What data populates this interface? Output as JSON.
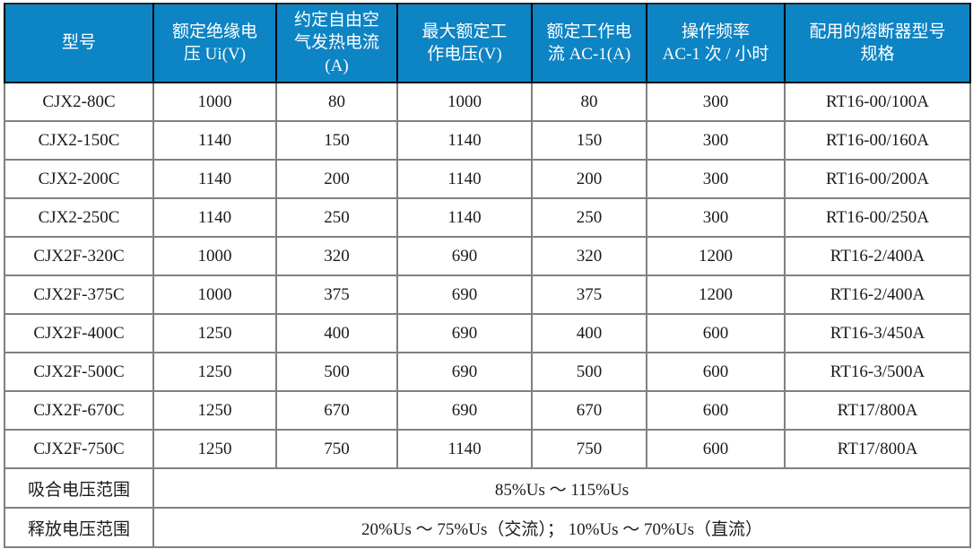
{
  "colors": {
    "header_bg": "#0d84c4",
    "header_text": "#ffffff",
    "grid": "#808080",
    "outer_border": "#222222",
    "body_text": "#1a1a1a"
  },
  "table": {
    "columns": [
      "型号",
      "额定绝缘电\n压 Ui(V)",
      "约定自由空\n气发热电流\n(A)",
      "最大额定工\n作电压(V)",
      "额定工作电\n流 AC-1(A)",
      "操作频率\nAC-1 次 / 小时",
      "配用的熔断器型号\n规格"
    ],
    "rows": [
      [
        "CJX2-80C",
        "1000",
        "80",
        "1000",
        "80",
        "300",
        "RT16-00/100A"
      ],
      [
        "CJX2-150C",
        "1140",
        "150",
        "1140",
        "150",
        "300",
        "RT16-00/160A"
      ],
      [
        "CJX2-200C",
        "1140",
        "200",
        "1140",
        "200",
        "300",
        "RT16-00/200A"
      ],
      [
        "CJX2-250C",
        "1140",
        "250",
        "1140",
        "250",
        "300",
        "RT16-00/250A"
      ],
      [
        "CJX2F-320C",
        "1000",
        "320",
        "690",
        "320",
        "1200",
        "RT16-2/400A"
      ],
      [
        "CJX2F-375C",
        "1000",
        "375",
        "690",
        "375",
        "1200",
        "RT16-2/400A"
      ],
      [
        "CJX2F-400C",
        "1250",
        "400",
        "690",
        "400",
        "600",
        "RT16-3/450A"
      ],
      [
        "CJX2F-500C",
        "1250",
        "500",
        "690",
        "500",
        "600",
        "RT16-3/500A"
      ],
      [
        "CJX2F-670C",
        "1250",
        "670",
        "690",
        "670",
        "600",
        "RT17/800A"
      ],
      [
        "CJX2F-750C",
        "1250",
        "750",
        "1140",
        "750",
        "600",
        "RT17/800A"
      ]
    ],
    "footer_rows": [
      {
        "label": "吸合电压范围",
        "value": "85%Us ～ 115%Us"
      },
      {
        "label": "释放电压范围",
        "value": "20%Us ～ 75%Us（交流）； 10%Us ～ 70%Us（直流）"
      }
    ]
  }
}
